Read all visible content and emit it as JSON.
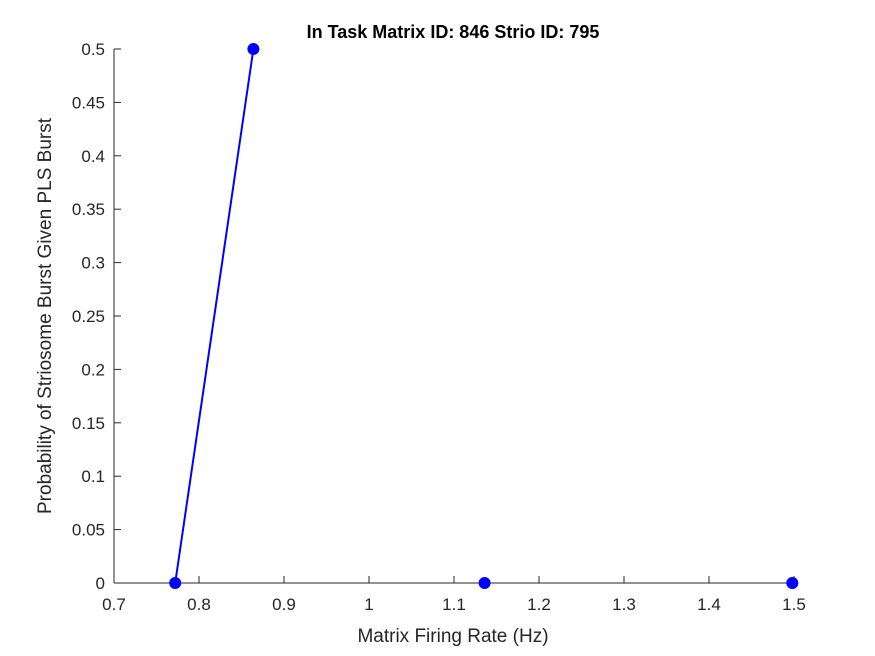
{
  "chart_data": {
    "type": "line",
    "title": "In Task Matrix ID: 846 Strio ID: 795",
    "xlabel": "Matrix Firing Rate (Hz)",
    "ylabel": "Probability of Striosome Burst Given PLS Burst",
    "xlim": [
      0.7,
      1.5
    ],
    "ylim": [
      0,
      0.5
    ],
    "xticks": [
      0.7,
      0.8,
      0.9,
      1,
      1.1,
      1.2,
      1.3,
      1.4,
      1.5
    ],
    "xtick_labels": [
      "0.7",
      "0.8",
      "0.9",
      "1",
      "1.1",
      "1.2",
      "1.3",
      "1.4",
      "1.5"
    ],
    "yticks": [
      0,
      0.05,
      0.1,
      0.15,
      0.2,
      0.25,
      0.3,
      0.35,
      0.4,
      0.45,
      0.5
    ],
    "ytick_labels": [
      "0",
      "0.05",
      "0.1",
      "0.15",
      "0.2",
      "0.25",
      "0.3",
      "0.35",
      "0.4",
      "0.45",
      "0.5"
    ],
    "grid": false,
    "series": [
      {
        "color": "#0000ff",
        "line_segments": [
          [
            [
              0.772,
              0
            ],
            [
              0.864,
              0.5
            ]
          ]
        ],
        "points": [
          {
            "x": 0.772,
            "y": 0
          },
          {
            "x": 0.864,
            "y": 0.5
          },
          {
            "x": 1.136,
            "y": 0
          },
          {
            "x": 1.498,
            "y": 0
          }
        ]
      }
    ]
  }
}
